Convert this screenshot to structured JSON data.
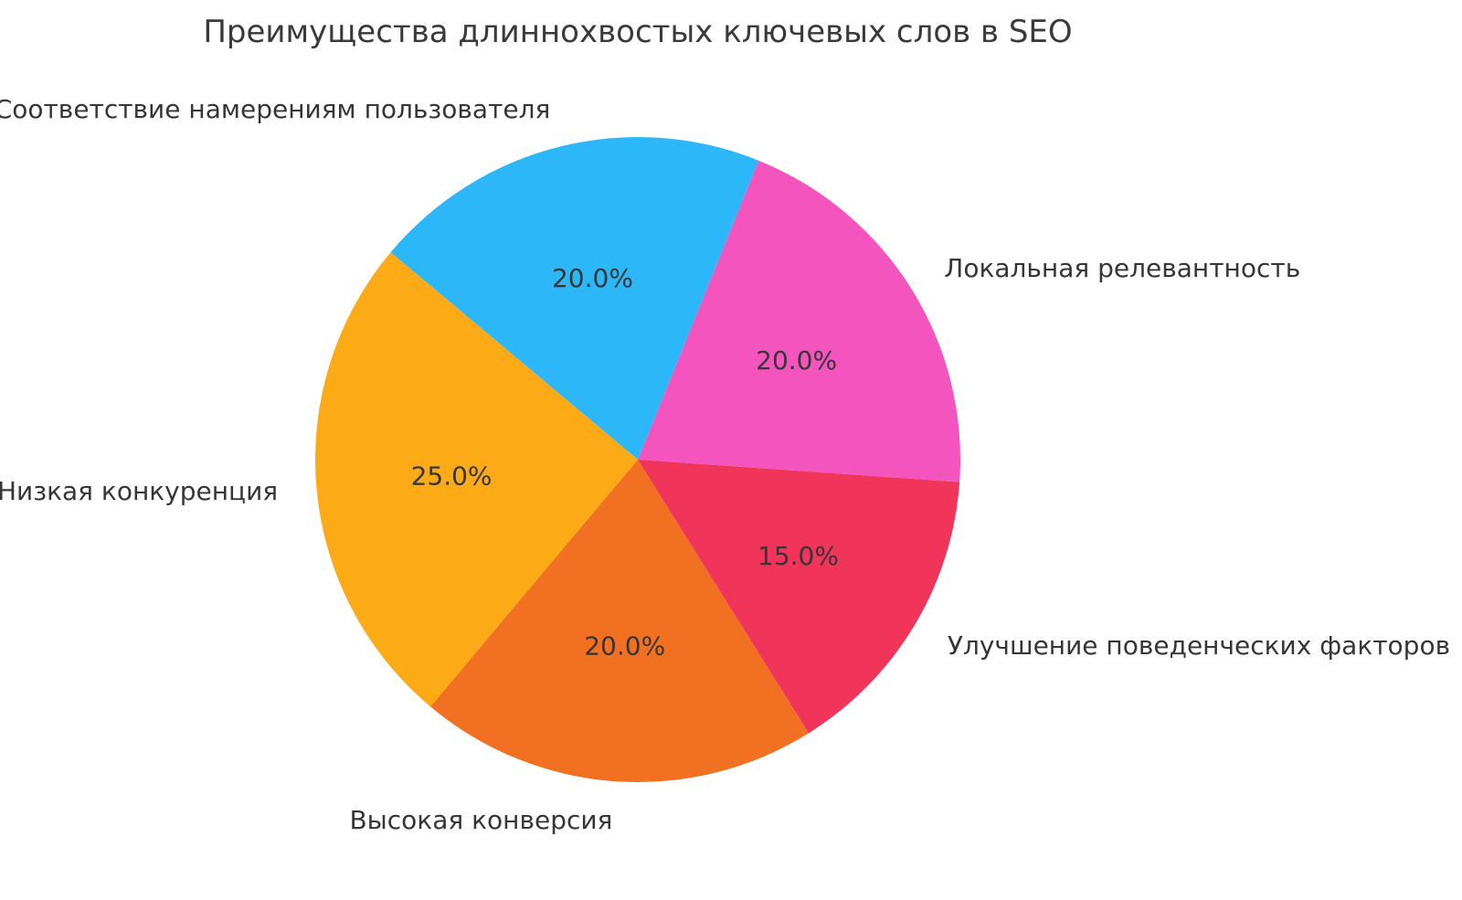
{
  "chart_data": {
    "type": "pie",
    "title": "Преимущества длиннохвостых ключевых слов в SEO",
    "slices": [
      {
        "label": "Локальная релевантность",
        "value": 20.0,
        "pct_label": "20.0%",
        "color": "#F454BD"
      },
      {
        "label": "Соответствие намерениям пользователя",
        "value": 20.0,
        "pct_label": "20.0%",
        "color": "#2BB7F8"
      },
      {
        "label": "Низкая конкуренция",
        "value": 25.0,
        "pct_label": "25.0%",
        "color": "#FCAA15"
      },
      {
        "label": "Высокая конверсия",
        "value": 20.0,
        "pct_label": "20.0%",
        "color": "#F17021"
      },
      {
        "label": "Улучшение поведенческих факторов",
        "value": 15.0,
        "pct_label": "15.0%",
        "color": "#F0345A"
      }
    ],
    "layout": {
      "start_angle_deg": -4,
      "direction": "counterclockwise",
      "label_distance": 1.12,
      "pct_distance": 0.58,
      "legend": "none",
      "background": "#FFFFFF",
      "text_color": "#363636",
      "title_color": "#3A3A3A"
    }
  }
}
